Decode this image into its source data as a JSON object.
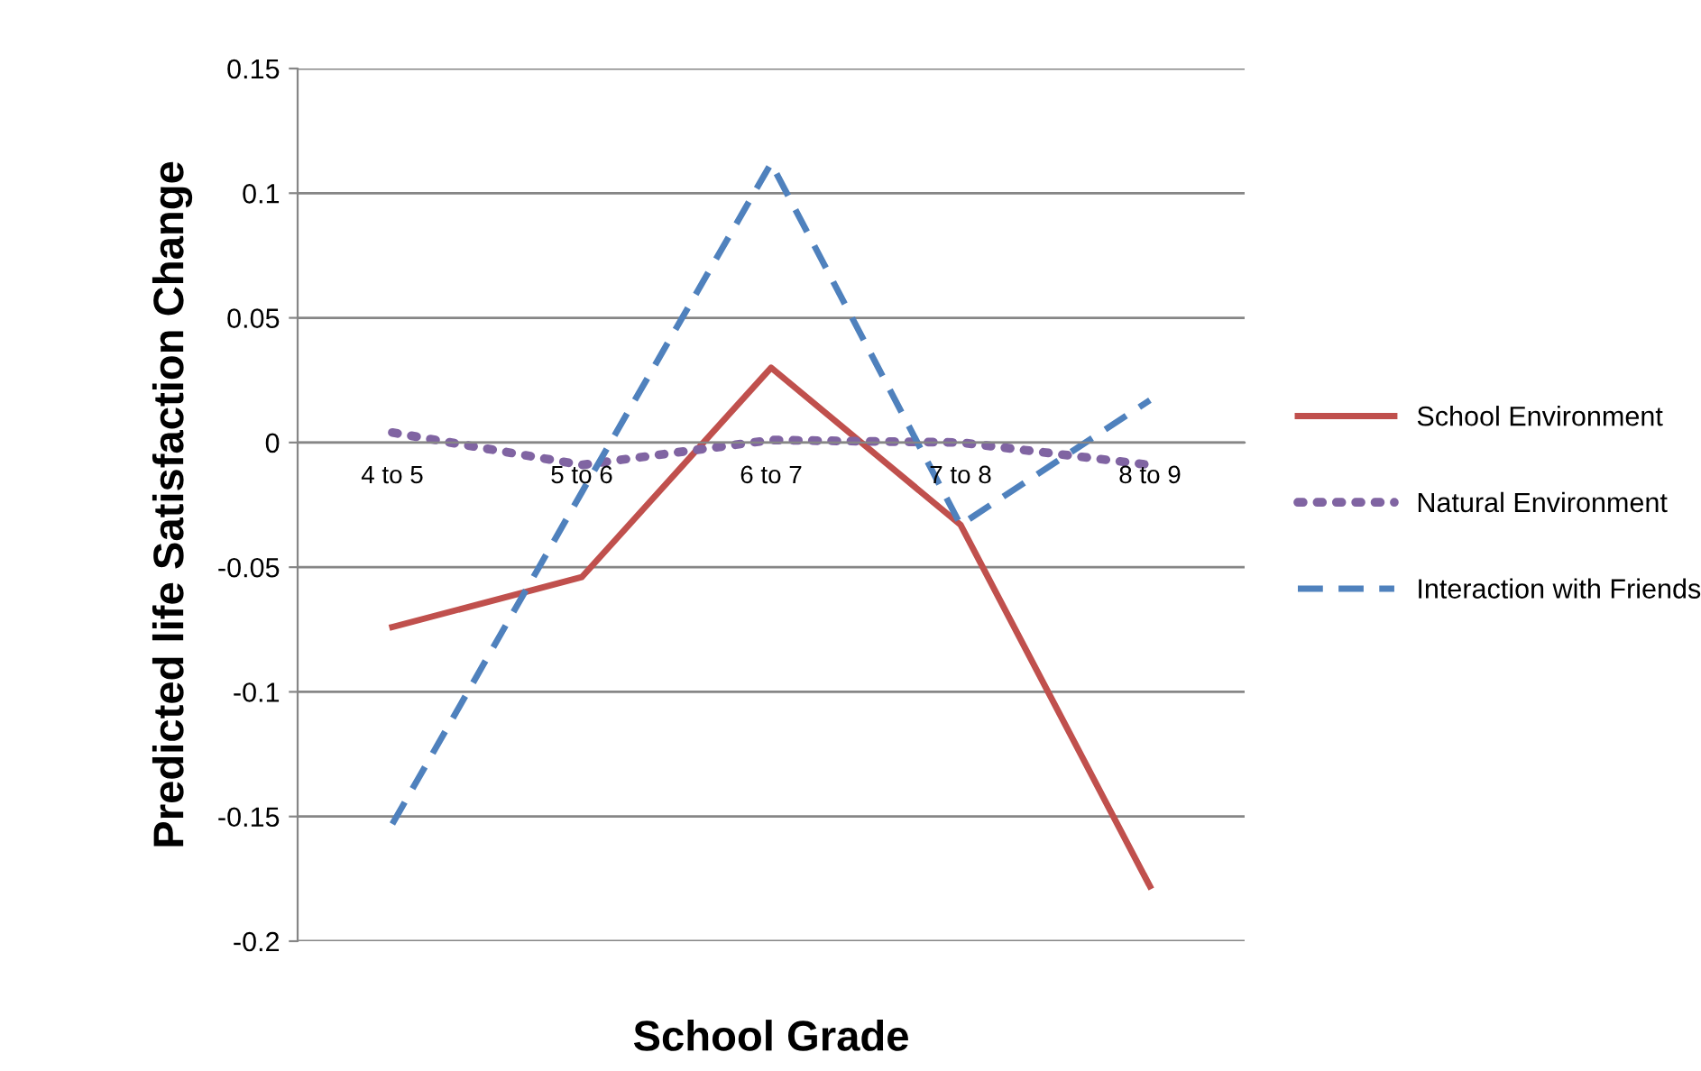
{
  "chart_data": {
    "type": "line",
    "xlabel": "School Grade",
    "ylabel": "Predicted life Satisfaction Change",
    "categories": [
      "4 to 5",
      "5 to 6",
      "6 to 7",
      "7 to 8",
      "8 to 9"
    ],
    "series": [
      {
        "name": "School Environment",
        "color": "#c0504d",
        "line_style": "solid",
        "values": [
          -0.074,
          -0.054,
          0.03,
          -0.033,
          -0.178
        ]
      },
      {
        "name": "Natural Environment",
        "color": "#8064a2",
        "line_style": "dotted",
        "values": [
          0.004,
          -0.009,
          0.001,
          0.0,
          -0.009
        ]
      },
      {
        "name": "Interaction with Friends",
        "color": "#4f81bd",
        "line_style": "dashed",
        "values": [
          -0.153,
          -0.02,
          0.112,
          -0.033,
          0.017
        ]
      }
    ],
    "ylim": [
      -0.2,
      0.15
    ],
    "yticks": [
      {
        "value": -0.2,
        "label": "-0.2"
      },
      {
        "value": -0.15,
        "label": "-0.15"
      },
      {
        "value": -0.1,
        "label": "-0.1"
      },
      {
        "value": -0.05,
        "label": "-0.05"
      },
      0,
      0.05,
      0.1,
      0.15
    ],
    "grid": "y",
    "legend": "right"
  }
}
